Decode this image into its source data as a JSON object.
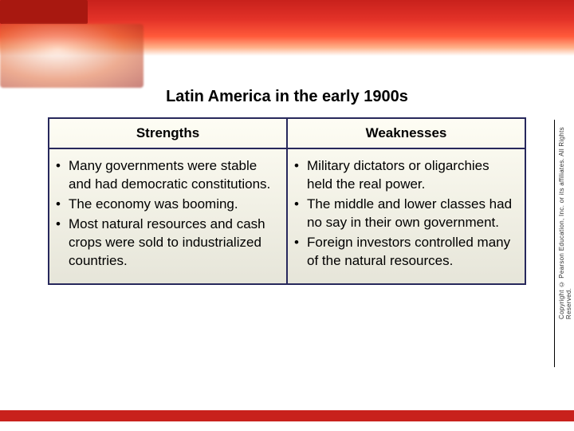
{
  "slide": {
    "title": "Latin America in the early 1900s",
    "title_fontsize": 20,
    "title_weight": "bold",
    "title_color": "#000000"
  },
  "table": {
    "type": "table",
    "border_color": "#27285c",
    "border_width": 2,
    "background_gradient": [
      "#fefdf4",
      "#f2f1e6",
      "#e6e5d9"
    ],
    "columns": [
      {
        "label": "Strengths",
        "align": "center",
        "fontsize": 17,
        "weight": "bold"
      },
      {
        "label": "Weaknesses",
        "align": "center",
        "fontsize": 17,
        "weight": "bold"
      }
    ],
    "body_fontsize": 17,
    "body_color": "#000000",
    "bullets": {
      "strengths": [
        "Many governments were stable and had democratic constitutions.",
        "The economy was booming.",
        "Most natural resources and cash crops were sold to industrialized countries."
      ],
      "weaknesses": [
        "Military dictators or oligarchies held the real power.",
        "The middle and lower classes had no say in their own government.",
        "Foreign investors controlled many of the natural resources."
      ]
    }
  },
  "theme": {
    "top_banner_gradient": [
      "#c8211c",
      "#e33228",
      "#ff5a3a",
      "#ffb088",
      "#ffffff"
    ],
    "bottom_bar_color": "#c8211c",
    "page_background": "#ffffff"
  },
  "copyright": {
    "text": "Copyright © Pearson Education, Inc. or its affiliates. All Rights Reserved.",
    "fontsize": 8,
    "color": "#333333"
  }
}
